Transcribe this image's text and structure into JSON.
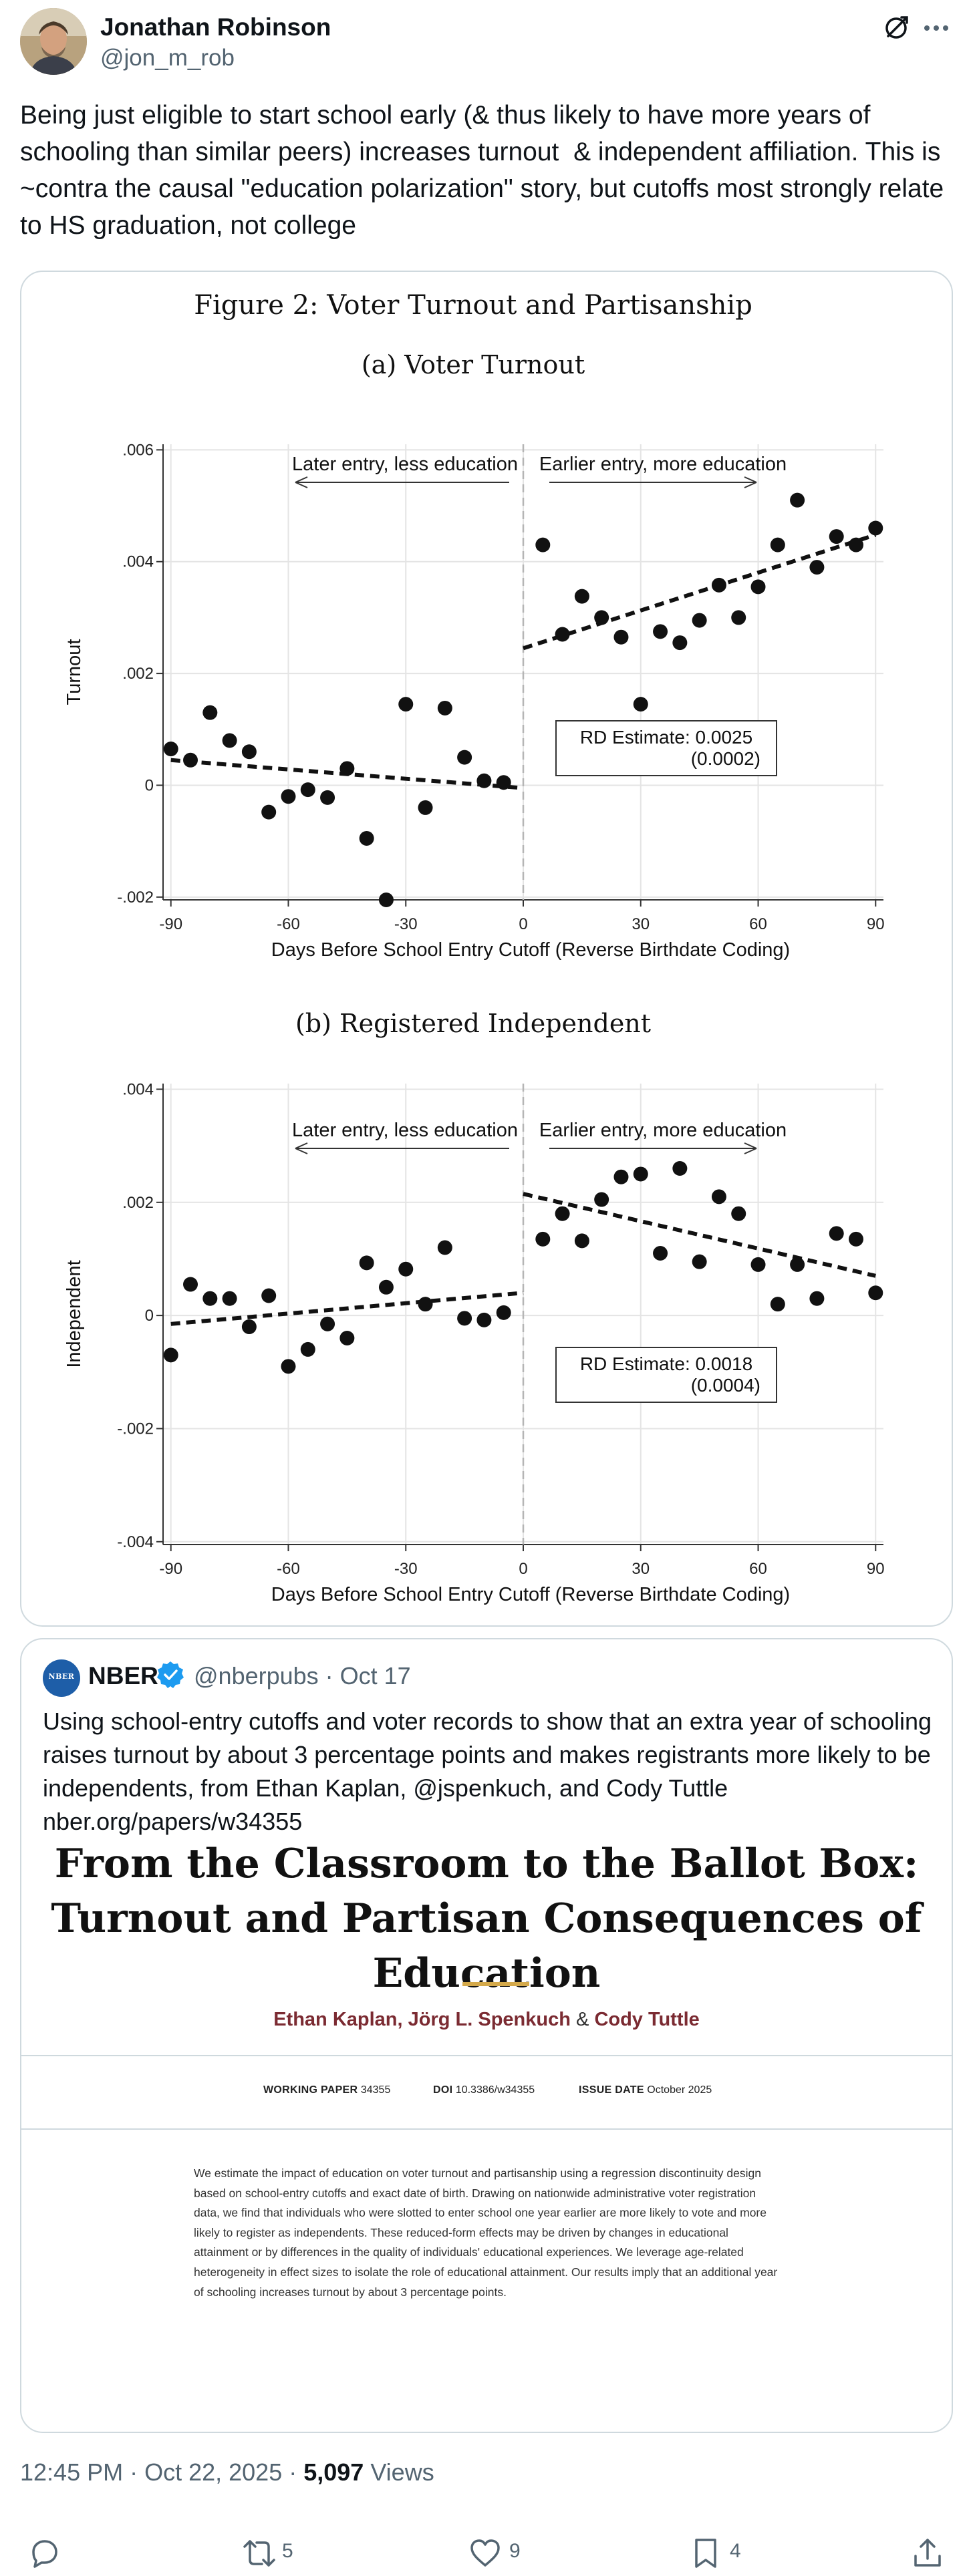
{
  "author": {
    "name": "Jonathan Robinson",
    "handle": "@jon_m_rob"
  },
  "tweet": {
    "text": "Being just eligible to start school early (& thus likely to have more years of schooling than similar peers) increases turnout  & independent affiliation. This is  ~contra the causal \"education polarization\" story, but cutoffs most strongly relate to HS graduation, not college"
  },
  "figure": {
    "title": "Figure 2: Voter Turnout and Partisanship",
    "left_annotation": "Later entry, less education",
    "right_annotation": "Earlier entry, more education",
    "x_ticks": [
      "-90",
      "-60",
      "-30",
      "0",
      "30",
      "60",
      "90"
    ],
    "xlabel": "Days Before School Entry Cutoff (Reverse Birthdate Coding)"
  },
  "chart_data": [
    {
      "type": "scatter",
      "title": "(a) Voter Turnout",
      "xlabel": "Days Before School Entry Cutoff (Reverse Birthdate Coding)",
      "ylabel": "Turnout",
      "xlim": [
        -92,
        92
      ],
      "ylim": [
        -0.00205,
        0.0061
      ],
      "x_ticks": [
        -90,
        -60,
        -30,
        0,
        30,
        60,
        90
      ],
      "y_ticks": [
        -0.002,
        0,
        0.002,
        0.004,
        0.006
      ],
      "y_tick_labels": [
        "-.002",
        "0",
        ".002",
        ".004",
        ".006"
      ],
      "grid": true,
      "cutoff_x": 0,
      "annotation": {
        "label": "RD Estimate: 0.0025",
        "se": "(0.0002)"
      },
      "points": [
        [
          -90,
          0.00065
        ],
        [
          -85,
          0.00045
        ],
        [
          -80,
          0.0013
        ],
        [
          -75,
          0.0008
        ],
        [
          -70,
          0.0006
        ],
        [
          -65,
          -0.00048
        ],
        [
          -60,
          -0.0002
        ],
        [
          -55,
          -8e-05
        ],
        [
          -50,
          -0.00022
        ],
        [
          -45,
          0.0003
        ],
        [
          -40,
          -0.00095
        ],
        [
          -35,
          -0.00205
        ],
        [
          -30,
          0.00145
        ],
        [
          -25,
          -0.0004
        ],
        [
          -20,
          0.00138
        ],
        [
          -15,
          0.0005
        ],
        [
          -10,
          8e-05
        ],
        [
          -5,
          5e-05
        ],
        [
          5,
          0.0043
        ],
        [
          10,
          0.0027
        ],
        [
          15,
          0.00338
        ],
        [
          20,
          0.003
        ],
        [
          25,
          0.00265
        ],
        [
          30,
          0.00145
        ],
        [
          35,
          0.00275
        ],
        [
          40,
          0.00255
        ],
        [
          45,
          0.00295
        ],
        [
          50,
          0.00358
        ],
        [
          55,
          0.003
        ],
        [
          60,
          0.00355
        ],
        [
          65,
          0.0043
        ],
        [
          70,
          0.0051
        ],
        [
          75,
          0.0039
        ],
        [
          80,
          0.00445
        ],
        [
          85,
          0.0043
        ],
        [
          90,
          0.0046
        ]
      ],
      "fit_left": [
        [
          -90,
          0.00045
        ],
        [
          0,
          -5e-05
        ]
      ],
      "fit_right": [
        [
          0,
          0.00245
        ],
        [
          90,
          0.00448
        ]
      ]
    },
    {
      "type": "scatter",
      "title": "(b) Registered Independent",
      "xlabel": "Days Before School Entry Cutoff (Reverse Birthdate Coding)",
      "ylabel": "Independent",
      "xlim": [
        -92,
        92
      ],
      "ylim": [
        -0.00405,
        0.0041
      ],
      "x_ticks": [
        -90,
        -60,
        -30,
        0,
        30,
        60,
        90
      ],
      "y_ticks": [
        -0.004,
        -0.002,
        0,
        0.002,
        0.004
      ],
      "y_tick_labels": [
        "-.004",
        "-.002",
        "0",
        ".002",
        ".004"
      ],
      "grid": true,
      "cutoff_x": 0,
      "annotation": {
        "label": "RD Estimate: 0.0018",
        "se": "(0.0004)"
      },
      "points": [
        [
          -90,
          -0.0007
        ],
        [
          -85,
          0.00055
        ],
        [
          -80,
          0.0003
        ],
        [
          -75,
          0.0003
        ],
        [
          -70,
          -0.0002
        ],
        [
          -65,
          0.00035
        ],
        [
          -60,
          -0.0009
        ],
        [
          -55,
          -0.0006
        ],
        [
          -50,
          -0.00015
        ],
        [
          -45,
          -0.0004
        ],
        [
          -40,
          0.00093
        ],
        [
          -35,
          0.0005
        ],
        [
          -30,
          0.00082
        ],
        [
          -25,
          0.0002
        ],
        [
          -20,
          0.0012
        ],
        [
          -15,
          -5e-05
        ],
        [
          -10,
          -8e-05
        ],
        [
          -5,
          5e-05
        ],
        [
          5,
          0.00135
        ],
        [
          10,
          0.0018
        ],
        [
          15,
          0.00132
        ],
        [
          20,
          0.00205
        ],
        [
          25,
          0.00245
        ],
        [
          30,
          0.0025
        ],
        [
          35,
          0.0011
        ],
        [
          40,
          0.0026
        ],
        [
          45,
          0.00095
        ],
        [
          50,
          0.0021
        ],
        [
          55,
          0.0018
        ],
        [
          60,
          0.0009
        ],
        [
          65,
          0.0002
        ],
        [
          70,
          0.0009
        ],
        [
          75,
          0.0003
        ],
        [
          80,
          0.00145
        ],
        [
          85,
          0.00135
        ],
        [
          90,
          0.0004
        ]
      ],
      "fit_left": [
        [
          -90,
          -0.00015
        ],
        [
          0,
          0.0004
        ]
      ],
      "fit_right": [
        [
          0,
          0.00215
        ],
        [
          90,
          0.0007
        ]
      ]
    }
  ],
  "quote": {
    "name": "NBER",
    "logo_text": "NBER",
    "handle": "@nberpubs · Oct 17",
    "text": "Using school-entry cutoffs and voter records to show that an extra year of schooling raises turnout by about 3 percentage points and makes registrants more likely to be independents, from Ethan Kaplan, @jspenkuch, and Cody Tuttle nber.org/papers/w34355",
    "paper": {
      "title": "From the Classroom to the Ballot Box: Turnout and Partisan Consequences of Education",
      "author1": "Ethan Kaplan",
      "author2": "Jörg L. Spenkuch",
      "author3": "Cody Tuttle",
      "comma": ",",
      "amp": "&",
      "wp_label": "WORKING PAPER",
      "wp_value": "34355",
      "doi_label": "DOI",
      "doi_value": "10.3386/w34355",
      "issue_label": "ISSUE DATE",
      "issue_value": "October 2025",
      "abstract": "We estimate the impact of education on voter turnout and partisanship using a regression discontinuity design based on school-entry cutoffs and exact date of birth. Drawing on nationwide administrative voter registration data, we find that individuals who were slotted to enter school one year earlier are more likely to vote and more likely to register as independents. These reduced-form effects may be driven by changes in educational attainment or by differences in the quality of individuals' educational experiences. We leverage age-related heterogeneity in effect sizes to isolate the role of educational attainment. Our results imply that an additional year of schooling increases turnout by about 3 percentage points."
    }
  },
  "footer": {
    "time": "12:45 PM · Oct 22, 2025 · ",
    "views_count": "5,097",
    "views_label": " Views"
  },
  "actions": {
    "reply_count": "",
    "retweet_count": "5",
    "like_count": "9",
    "bookmark_count": "4"
  },
  "colors": {
    "text": "#0f1419",
    "secondary": "#536471",
    "border": "#cfd9de",
    "nber_blue": "#1e5ea8",
    "verified": "#1d9bf0",
    "paper_accent": "#d4a94a",
    "author_red": "#7b2b32"
  }
}
